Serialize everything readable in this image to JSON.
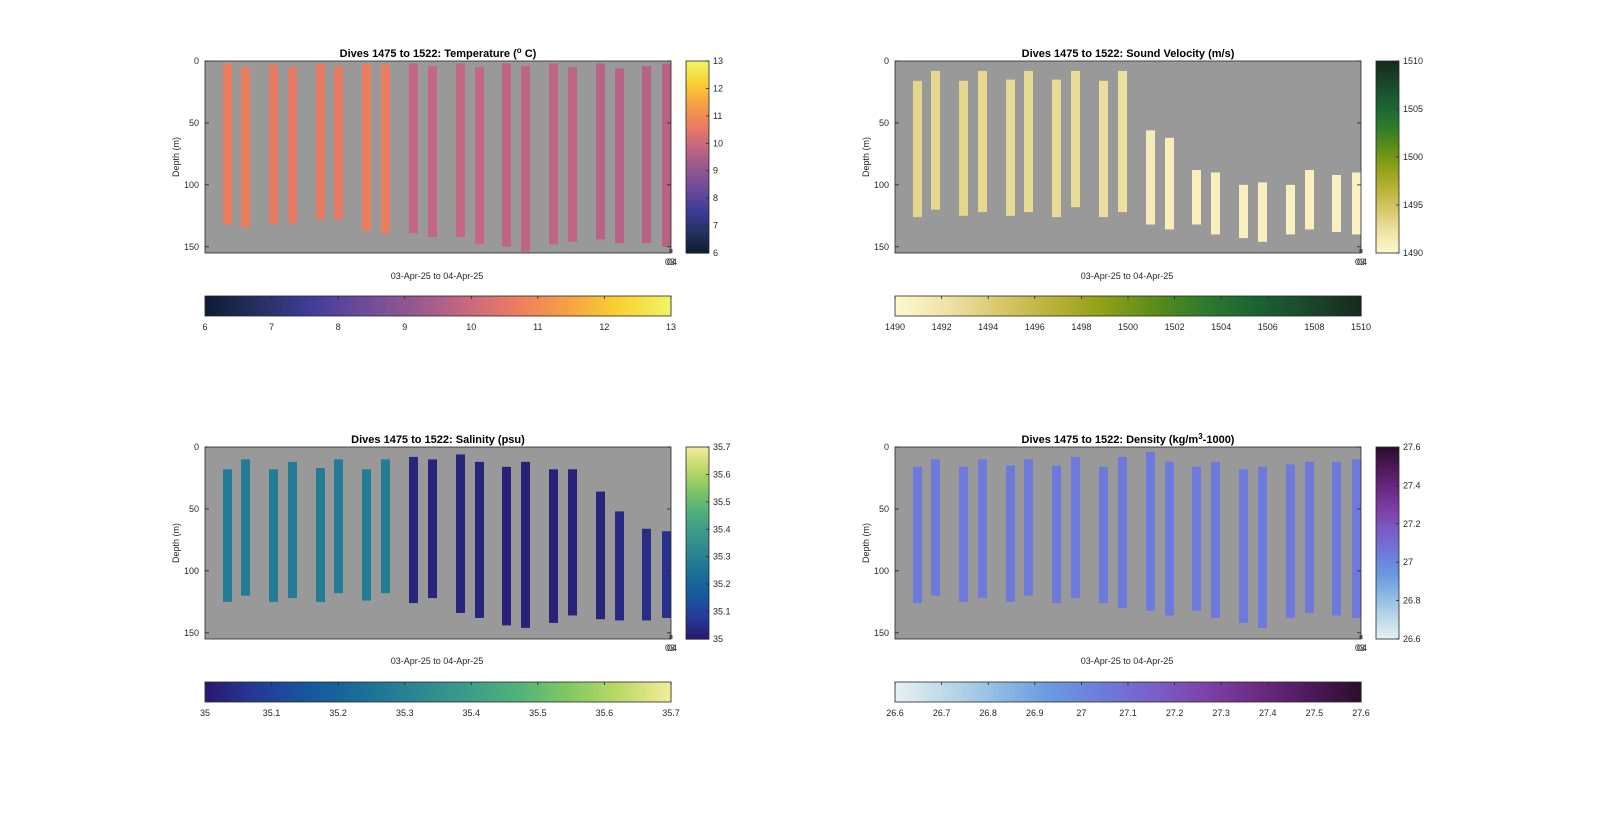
{
  "figure": {
    "background": "#ffffff",
    "axes_bg": "#999999"
  },
  "chart_data": [
    {
      "type": "heatmap",
      "title_pre": "Dives 1475 to 1522: Temperature (",
      "title_sup": "o",
      "title_post": " C)",
      "xlabel": "03-Apr-25 to 04-Apr-25",
      "xtick_labels": [
        "03",
        "04"
      ],
      "ylabel": "Depth (m)",
      "ylim": [
        0,
        155
      ],
      "yticks": [
        0,
        50,
        100,
        150
      ],
      "clim": [
        6,
        13
      ],
      "side_colorbar_ticks": [
        6,
        7,
        8,
        9,
        10,
        11,
        12,
        13
      ],
      "bottom_colorbar_ticks": [
        6,
        7,
        8,
        9,
        10,
        11,
        12,
        13
      ],
      "colormap": [
        "#0c1c33",
        "#24305f",
        "#3e3c97",
        "#6a4a9a",
        "#94588f",
        "#c36782",
        "#ec7c60",
        "#f7a046",
        "#f9d12f",
        "#f0f566"
      ],
      "profiles": [
        {
          "dive": 1475,
          "top": 2,
          "bottom": 132,
          "value": 10.7
        },
        {
          "dive": 1476,
          "top": 5,
          "bottom": 134,
          "value": 10.7
        },
        {
          "dive": 1477,
          "top": 3,
          "bottom": 132,
          "value": 10.6
        },
        {
          "dive": 1478,
          "top": 5,
          "bottom": 131,
          "value": 10.6
        },
        {
          "dive": 1479,
          "top": 2,
          "bottom": 128,
          "value": 10.6
        },
        {
          "dive": 1480,
          "top": 4,
          "bottom": 128,
          "value": 10.6
        },
        {
          "dive": 1481,
          "top": 2,
          "bottom": 137,
          "value": 10.7
        },
        {
          "dive": 1482,
          "top": 3,
          "bottom": 139,
          "value": 10.7
        },
        {
          "dive": 1483,
          "top": 2,
          "bottom": 139,
          "value": 9.9
        },
        {
          "dive": 1484,
          "top": 4,
          "bottom": 142,
          "value": 9.9
        },
        {
          "dive": 1485,
          "top": 2,
          "bottom": 142,
          "value": 9.9
        },
        {
          "dive": 1486,
          "top": 5,
          "bottom": 148,
          "value": 9.9
        },
        {
          "dive": 1487,
          "top": 2,
          "bottom": 150,
          "value": 9.8
        },
        {
          "dive": 1488,
          "top": 4,
          "bottom": 154,
          "value": 9.8
        },
        {
          "dive": 1489,
          "top": 2,
          "bottom": 148,
          "value": 9.8
        },
        {
          "dive": 1490,
          "top": 5,
          "bottom": 146,
          "value": 9.8
        },
        {
          "dive": 1491,
          "top": 2,
          "bottom": 144,
          "value": 9.7
        },
        {
          "dive": 1492,
          "top": 6,
          "bottom": 147,
          "value": 9.7
        },
        {
          "dive": 1493,
          "top": 4,
          "bottom": 147,
          "value": 9.7
        },
        {
          "dive": 1494,
          "top": 2,
          "bottom": 150,
          "value": 9.7
        }
      ]
    },
    {
      "type": "heatmap",
      "title_pre": "Dives 1475 to 1522: Sound Velocity (m/s)",
      "title_sup": "",
      "title_post": "",
      "xlabel": "03-Apr-25 to 04-Apr-25",
      "xtick_labels": [
        "03",
        "04"
      ],
      "ylabel": "Depth (m)",
      "ylim": [
        0,
        155
      ],
      "yticks": [
        0,
        50,
        100,
        150
      ],
      "clim": [
        1490,
        1510
      ],
      "side_colorbar_ticks": [
        1490,
        1495,
        1500,
        1505,
        1510
      ],
      "bottom_colorbar_ticks": [
        1490,
        1492,
        1494,
        1496,
        1498,
        1500,
        1502,
        1504,
        1506,
        1508,
        1510
      ],
      "colormap": [
        "#fdf8cf",
        "#efe3a6",
        "#d9c86c",
        "#bbb23a",
        "#8fa117",
        "#5b8d19",
        "#2d7a2c",
        "#1a6233",
        "#1b472a",
        "#16291c"
      ],
      "profiles": [
        {
          "dive": 1475,
          "top": 16,
          "bottom": 126,
          "value": 1493.3
        },
        {
          "dive": 1476,
          "top": 8,
          "bottom": 120,
          "value": 1493.2
        },
        {
          "dive": 1477,
          "top": 16,
          "bottom": 125,
          "value": 1493.3
        },
        {
          "dive": 1478,
          "top": 8,
          "bottom": 122,
          "value": 1493.2
        },
        {
          "dive": 1479,
          "top": 15,
          "bottom": 125,
          "value": 1493.0
        },
        {
          "dive": 1480,
          "top": 8,
          "bottom": 122,
          "value": 1492.9
        },
        {
          "dive": 1481,
          "top": 15,
          "bottom": 126,
          "value": 1492.8
        },
        {
          "dive": 1482,
          "top": 8,
          "bottom": 118,
          "value": 1492.8
        },
        {
          "dive": 1483,
          "top": 16,
          "bottom": 126,
          "value": 1492.6
        },
        {
          "dive": 1484,
          "top": 8,
          "bottom": 122,
          "value": 1492.5
        },
        {
          "dive": 1485,
          "top": 56,
          "bottom": 132,
          "value": 1491.2
        },
        {
          "dive": 1486,
          "top": 62,
          "bottom": 136,
          "value": 1491.1
        },
        {
          "dive": 1487,
          "top": 88,
          "bottom": 132,
          "value": 1491.0
        },
        {
          "dive": 1488,
          "top": 90,
          "bottom": 140,
          "value": 1491.0
        },
        {
          "dive": 1489,
          "top": 100,
          "bottom": 143,
          "value": 1490.9
        },
        {
          "dive": 1490,
          "top": 98,
          "bottom": 146,
          "value": 1490.9
        },
        {
          "dive": 1491,
          "top": 100,
          "bottom": 140,
          "value": 1490.8
        },
        {
          "dive": 1492,
          "top": 88,
          "bottom": 136,
          "value": 1490.8
        },
        {
          "dive": 1493,
          "top": 92,
          "bottom": 138,
          "value": 1490.8
        },
        {
          "dive": 1494,
          "top": 90,
          "bottom": 140,
          "value": 1490.7
        }
      ]
    },
    {
      "type": "heatmap",
      "title_pre": "Dives 1475 to 1522: Salinity (psu)",
      "title_sup": "",
      "title_post": "",
      "xlabel": "03-Apr-25 to 04-Apr-25",
      "xtick_labels": [
        "03",
        "04"
      ],
      "ylabel": "Depth (m)",
      "ylim": [
        0,
        155
      ],
      "yticks": [
        0,
        50,
        100,
        150
      ],
      "clim": [
        35,
        35.7
      ],
      "side_colorbar_ticks": [
        35,
        35.1,
        35.2,
        35.3,
        35.4,
        35.5,
        35.6,
        35.7
      ],
      "bottom_colorbar_ticks": [
        35,
        35.1,
        35.2,
        35.3,
        35.4,
        35.5,
        35.6,
        35.7
      ],
      "colormap": [
        "#2a186c",
        "#253a98",
        "#17579e",
        "#196e97",
        "#2b8492",
        "#3a9a8a",
        "#50b07a",
        "#80c764",
        "#bcd968",
        "#f4eb9c"
      ],
      "profiles": [
        {
          "dive": 1475,
          "top": 18,
          "bottom": 125,
          "value": 35.28
        },
        {
          "dive": 1476,
          "top": 10,
          "bottom": 120,
          "value": 35.28
        },
        {
          "dive": 1477,
          "top": 18,
          "bottom": 125,
          "value": 35.28
        },
        {
          "dive": 1478,
          "top": 12,
          "bottom": 122,
          "value": 35.28
        },
        {
          "dive": 1479,
          "top": 17,
          "bottom": 125,
          "value": 35.28
        },
        {
          "dive": 1480,
          "top": 10,
          "bottom": 118,
          "value": 35.28
        },
        {
          "dive": 1481,
          "top": 18,
          "bottom": 124,
          "value": 35.28
        },
        {
          "dive": 1482,
          "top": 10,
          "bottom": 118,
          "value": 35.28
        },
        {
          "dive": 1483,
          "top": 8,
          "bottom": 126,
          "value": 35.03
        },
        {
          "dive": 1484,
          "top": 10,
          "bottom": 122,
          "value": 35.03
        },
        {
          "dive": 1485,
          "top": 6,
          "bottom": 134,
          "value": 35.03
        },
        {
          "dive": 1486,
          "top": 12,
          "bottom": 138,
          "value": 35.03
        },
        {
          "dive": 1487,
          "top": 16,
          "bottom": 144,
          "value": 35.02
        },
        {
          "dive": 1488,
          "top": 12,
          "bottom": 146,
          "value": 35.02
        },
        {
          "dive": 1489,
          "top": 18,
          "bottom": 142,
          "value": 35.02
        },
        {
          "dive": 1490,
          "top": 18,
          "bottom": 136,
          "value": 35.02
        },
        {
          "dive": 1491,
          "top": 36,
          "bottom": 139,
          "value": 35.03
        },
        {
          "dive": 1492,
          "top": 52,
          "bottom": 140,
          "value": 35.04
        },
        {
          "dive": 1493,
          "top": 66,
          "bottom": 140,
          "value": 35.05
        },
        {
          "dive": 1494,
          "top": 68,
          "bottom": 138,
          "value": 35.06
        }
      ]
    },
    {
      "type": "heatmap",
      "title_pre": "Dives 1475 to 1522: Density (kg/m",
      "title_sup": "3",
      "title_post": "-1000)",
      "xlabel": "03-Apr-25 to 04-Apr-25",
      "xtick_labels": [
        "03",
        "04"
      ],
      "ylabel": "Depth (m)",
      "ylim": [
        0,
        155
      ],
      "yticks": [
        0,
        50,
        100,
        150
      ],
      "clim": [
        26.6,
        27.6
      ],
      "side_colorbar_ticks": [
        26.6,
        26.8,
        27,
        27.2,
        27.4,
        27.6
      ],
      "bottom_colorbar_ticks": [
        26.6,
        26.7,
        26.8,
        26.9,
        27,
        27.1,
        27.2,
        27.3,
        27.4,
        27.5,
        27.6
      ],
      "colormap": [
        "#e8f1f3",
        "#bcd9e8",
        "#8fbbe3",
        "#6b99de",
        "#6d7bdc",
        "#7a5fc8",
        "#7d42a8",
        "#6c2a84",
        "#4f1a5c",
        "#2b0d2c"
      ],
      "profiles": [
        {
          "dive": 1475,
          "top": 16,
          "bottom": 126,
          "value": 27.05
        },
        {
          "dive": 1476,
          "top": 10,
          "bottom": 120,
          "value": 27.05
        },
        {
          "dive": 1477,
          "top": 16,
          "bottom": 125,
          "value": 27.05
        },
        {
          "dive": 1478,
          "top": 10,
          "bottom": 122,
          "value": 27.05
        },
        {
          "dive": 1479,
          "top": 15,
          "bottom": 125,
          "value": 27.05
        },
        {
          "dive": 1480,
          "top": 10,
          "bottom": 120,
          "value": 27.05
        },
        {
          "dive": 1481,
          "top": 15,
          "bottom": 126,
          "value": 27.05
        },
        {
          "dive": 1482,
          "top": 8,
          "bottom": 122,
          "value": 27.05
        },
        {
          "dive": 1483,
          "top": 16,
          "bottom": 126,
          "value": 27.05
        },
        {
          "dive": 1484,
          "top": 8,
          "bottom": 130,
          "value": 27.05
        },
        {
          "dive": 1485,
          "top": 4,
          "bottom": 132,
          "value": 27.05
        },
        {
          "dive": 1486,
          "top": 12,
          "bottom": 136,
          "value": 27.05
        },
        {
          "dive": 1487,
          "top": 16,
          "bottom": 132,
          "value": 27.05
        },
        {
          "dive": 1488,
          "top": 12,
          "bottom": 138,
          "value": 27.05
        },
        {
          "dive": 1489,
          "top": 18,
          "bottom": 142,
          "value": 27.05
        },
        {
          "dive": 1490,
          "top": 16,
          "bottom": 146,
          "value": 27.05
        },
        {
          "dive": 1491,
          "top": 14,
          "bottom": 138,
          "value": 27.05
        },
        {
          "dive": 1492,
          "top": 12,
          "bottom": 134,
          "value": 27.05
        },
        {
          "dive": 1493,
          "top": 12,
          "bottom": 136,
          "value": 27.05
        },
        {
          "dive": 1494,
          "top": 10,
          "bottom": 138,
          "value": 27.05
        }
      ]
    }
  ]
}
